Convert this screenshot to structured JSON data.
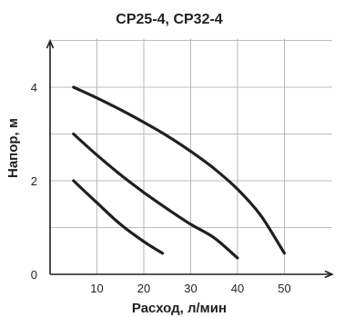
{
  "chart_data": {
    "type": "line",
    "title": "CP25-4, CP32-4",
    "xlabel": "Расход, л/мин",
    "ylabel": "Напор, м",
    "xlim": [
      0,
      60
    ],
    "ylim": [
      0,
      5
    ],
    "x_ticks": [
      10,
      20,
      30,
      40,
      50
    ],
    "y_ticks": [
      0,
      2,
      4
    ],
    "grid": true,
    "series": [
      {
        "x": [
          5,
          10,
          15,
          20,
          24
        ],
        "y": [
          2.0,
          1.53,
          1.07,
          0.7,
          0.45
        ]
      },
      {
        "x": [
          5,
          10,
          15,
          20,
          25,
          30,
          35,
          40
        ],
        "y": [
          3.0,
          2.55,
          2.13,
          1.75,
          1.4,
          1.07,
          0.78,
          0.35
        ]
      },
      {
        "x": [
          5,
          10,
          15,
          20,
          25,
          30,
          35,
          40,
          45,
          50
        ],
        "y": [
          4.0,
          3.77,
          3.52,
          3.25,
          2.96,
          2.63,
          2.26,
          1.82,
          1.25,
          0.45
        ]
      }
    ],
    "style": {
      "line_color": "#231f20",
      "grid_color": "#a7a9ac"
    }
  }
}
